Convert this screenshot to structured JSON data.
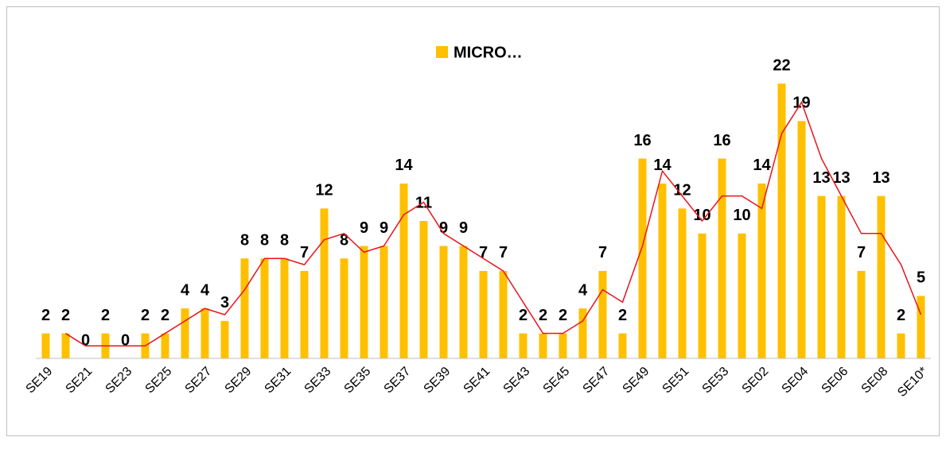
{
  "chart_data": {
    "type": "bar",
    "legend": "top",
    "categories": [
      "SE19",
      null,
      "SE21",
      null,
      "SE23",
      null,
      "SE25",
      null,
      "SE27",
      null,
      "SE29",
      null,
      "SE31",
      null,
      "SE33",
      null,
      "SE35",
      null,
      "SE37",
      null,
      "SE39",
      null,
      "SE41",
      null,
      "SE43",
      null,
      "SE45",
      null,
      "SE47",
      null,
      "SE49",
      null,
      "SE51",
      null,
      "SE53",
      null,
      "SE02",
      null,
      "SE04",
      null,
      "SE06",
      null,
      "SE08",
      null,
      "SE10*"
    ],
    "ylim": [
      0,
      25
    ],
    "series": [
      {
        "name": "MICRO…",
        "type": "bar",
        "color": "#ffc000",
        "values": [
          2,
          2,
          0,
          2,
          0,
          2,
          2,
          4,
          4,
          3,
          8,
          8,
          8,
          7,
          12,
          8,
          9,
          9,
          14,
          11,
          9,
          9,
          7,
          7,
          2,
          2,
          2,
          4,
          7,
          2,
          16,
          14,
          12,
          10,
          16,
          10,
          14,
          22,
          19,
          13,
          13,
          7,
          13,
          2,
          5
        ]
      },
      {
        "type": "line",
        "color": "#e8141c",
        "values": [
          null,
          2,
          1,
          1,
          1,
          1,
          2,
          3,
          4,
          3.5,
          5.5,
          8,
          8,
          7.5,
          9.5,
          10,
          8.5,
          9,
          11.5,
          12.5,
          10,
          9,
          8,
          7,
          4.5,
          2,
          2,
          3,
          5.5,
          4.5,
          9,
          15,
          13,
          11,
          13,
          13,
          12,
          18,
          20.5,
          16,
          13,
          10,
          10,
          7.5,
          3.5
        ]
      }
    ]
  }
}
